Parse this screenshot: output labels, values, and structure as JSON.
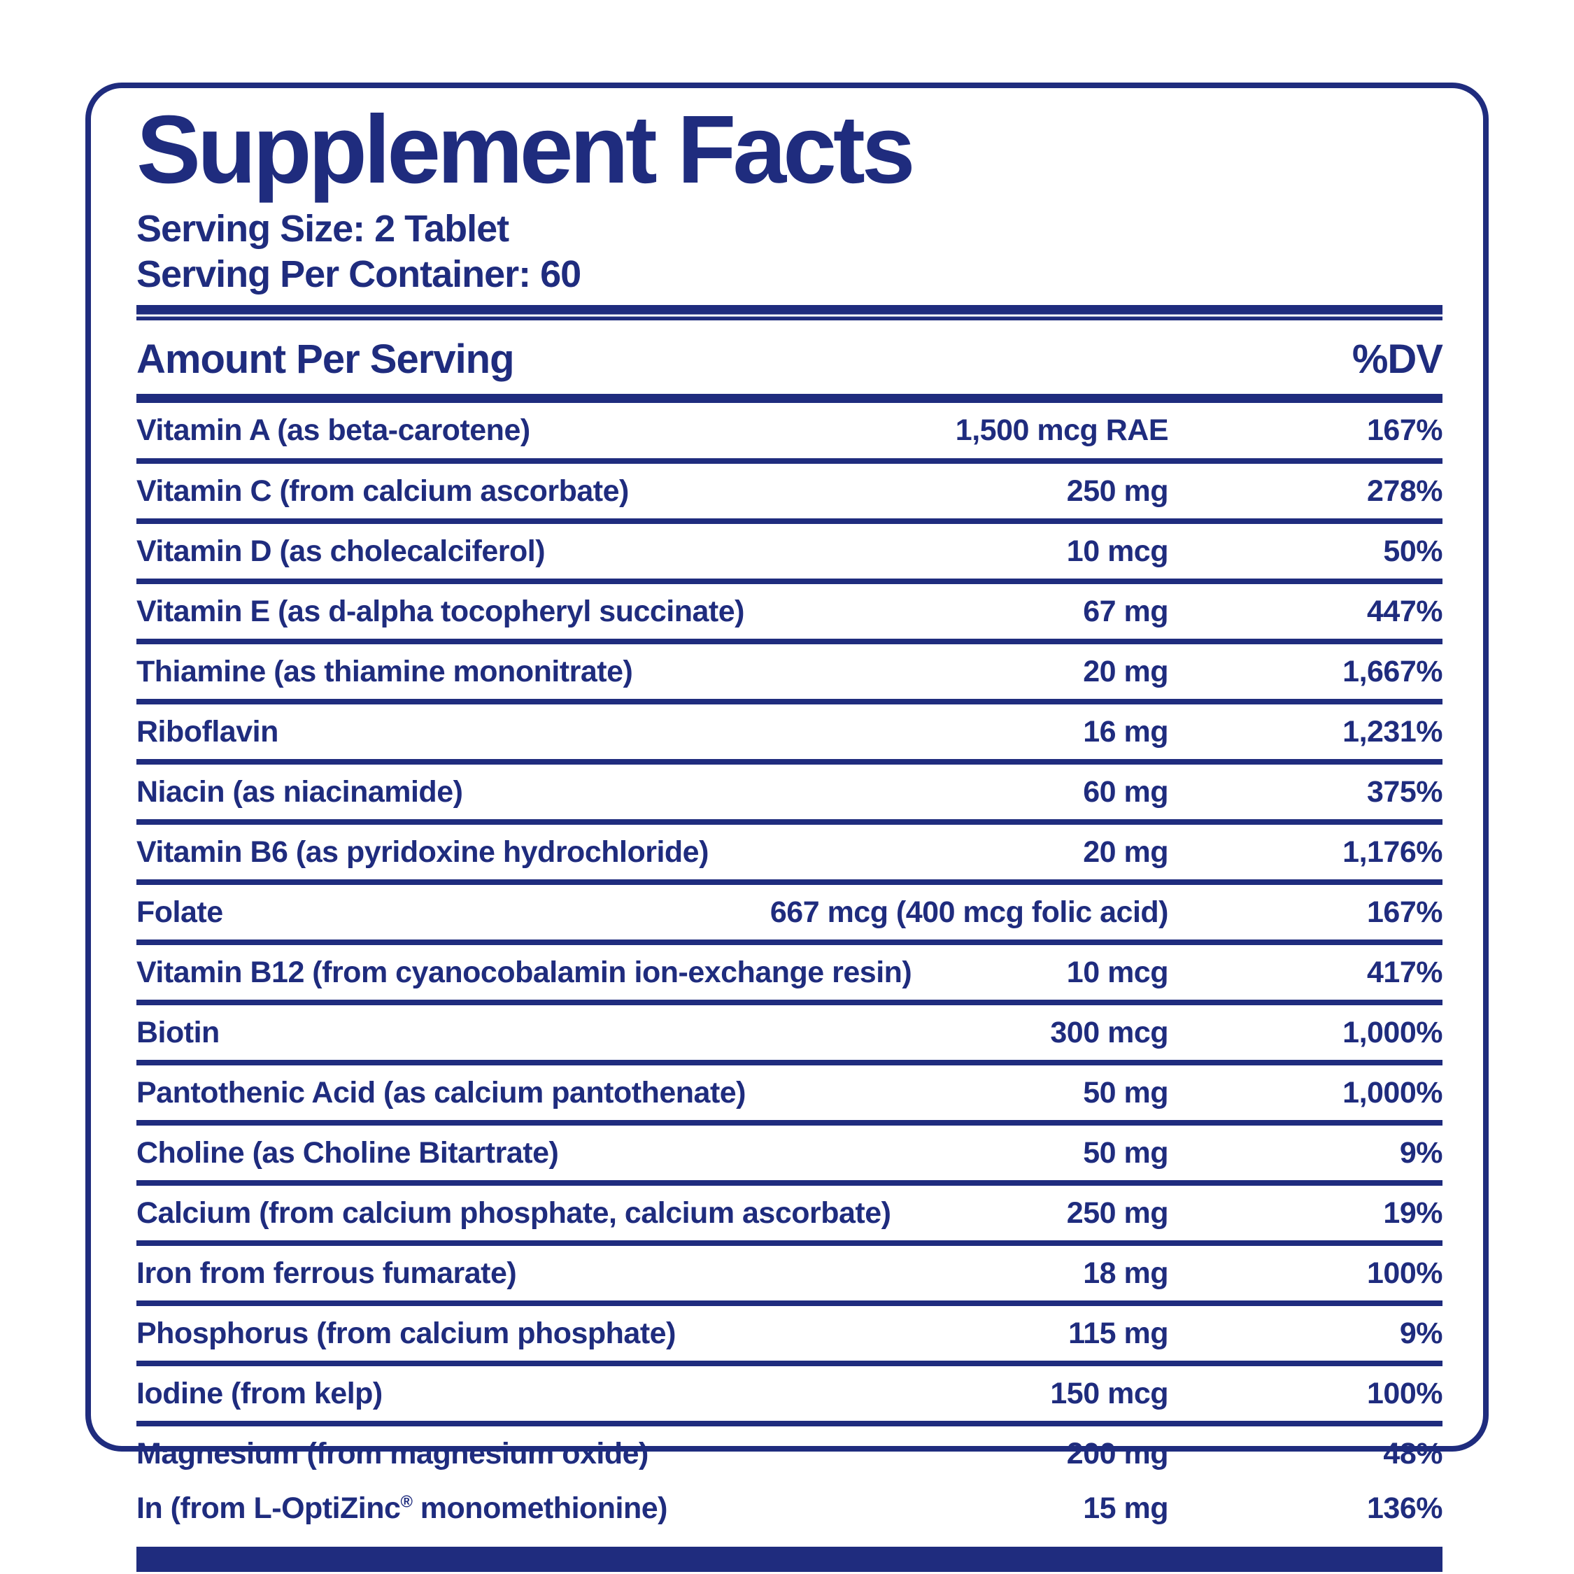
{
  "colors": {
    "navy": "#1f2c7e",
    "background": "#ffffff"
  },
  "title": "Supplement Facts",
  "serving_size": "Serving Size: 2 Tablet",
  "servings_per_container": "Serving Per Container: 60",
  "columns": {
    "amount_header": "Amount Per Serving",
    "dv_header": "%DV"
  },
  "rows": [
    {
      "name": "Vitamin A (as beta-carotene)",
      "amount": "1,500 mcg RAE",
      "dv": "167%"
    },
    {
      "name": "Vitamin C (from calcium ascorbate)",
      "amount": "250 mg",
      "dv": "278%"
    },
    {
      "name": "Vitamin D (as cholecalciferol)",
      "amount": "10 mcg",
      "dv": "50%"
    },
    {
      "name": "Vitamin E (as d-alpha tocopheryl succinate)",
      "amount": "67 mg",
      "dv": "447%"
    },
    {
      "name": "Thiamine (as thiamine mononitrate)",
      "amount": "20 mg",
      "dv": "1,667%"
    },
    {
      "name": "Riboflavin",
      "amount": "16 mg",
      "dv": "1,231%"
    },
    {
      "name": "Niacin (as niacinamide)",
      "amount": "60 mg",
      "dv": "375%"
    },
    {
      "name": "Vitamin B6 (as pyridoxine hydrochloride)",
      "amount": "20 mg",
      "dv": "1,176%"
    },
    {
      "name": "Folate",
      "amount": "667 mcg (400 mcg folic acid)",
      "dv": "167%"
    },
    {
      "name": "Vitamin B12 (from cyanocobalamin ion-exchange resin)",
      "amount": "10 mcg",
      "dv": "417%"
    },
    {
      "name": "Biotin",
      "amount": "300 mcg",
      "dv": "1,000%"
    },
    {
      "name": "Pantothenic Acid (as calcium pantothenate)",
      "amount": "50 mg",
      "dv": "1,000%"
    },
    {
      "name": "Choline (as Choline Bitartrate)",
      "amount": "50 mg",
      "dv": "9%"
    },
    {
      "name": "Calcium  (from calcium phosphate, calcium ascorbate)",
      "amount": "250 mg",
      "dv": "19%"
    },
    {
      "name": "Iron from ferrous fumarate)",
      "amount": "18 mg",
      "dv": "100%"
    },
    {
      "name": "Phosphorus (from calcium phosphate)",
      "amount": "115 mg",
      "dv": "9%"
    },
    {
      "name": "Iodine (from kelp)",
      "amount": "150 mcg",
      "dv": "100%"
    },
    {
      "name": "Magnesium (from magnesium oxide)",
      "amount": "200 mg",
      "dv": "48%"
    },
    {
      "name": "In (from L-OptiZinc® monomethionine)",
      "amount": "15 mg",
      "dv": "136%",
      "rule_above": false
    }
  ]
}
